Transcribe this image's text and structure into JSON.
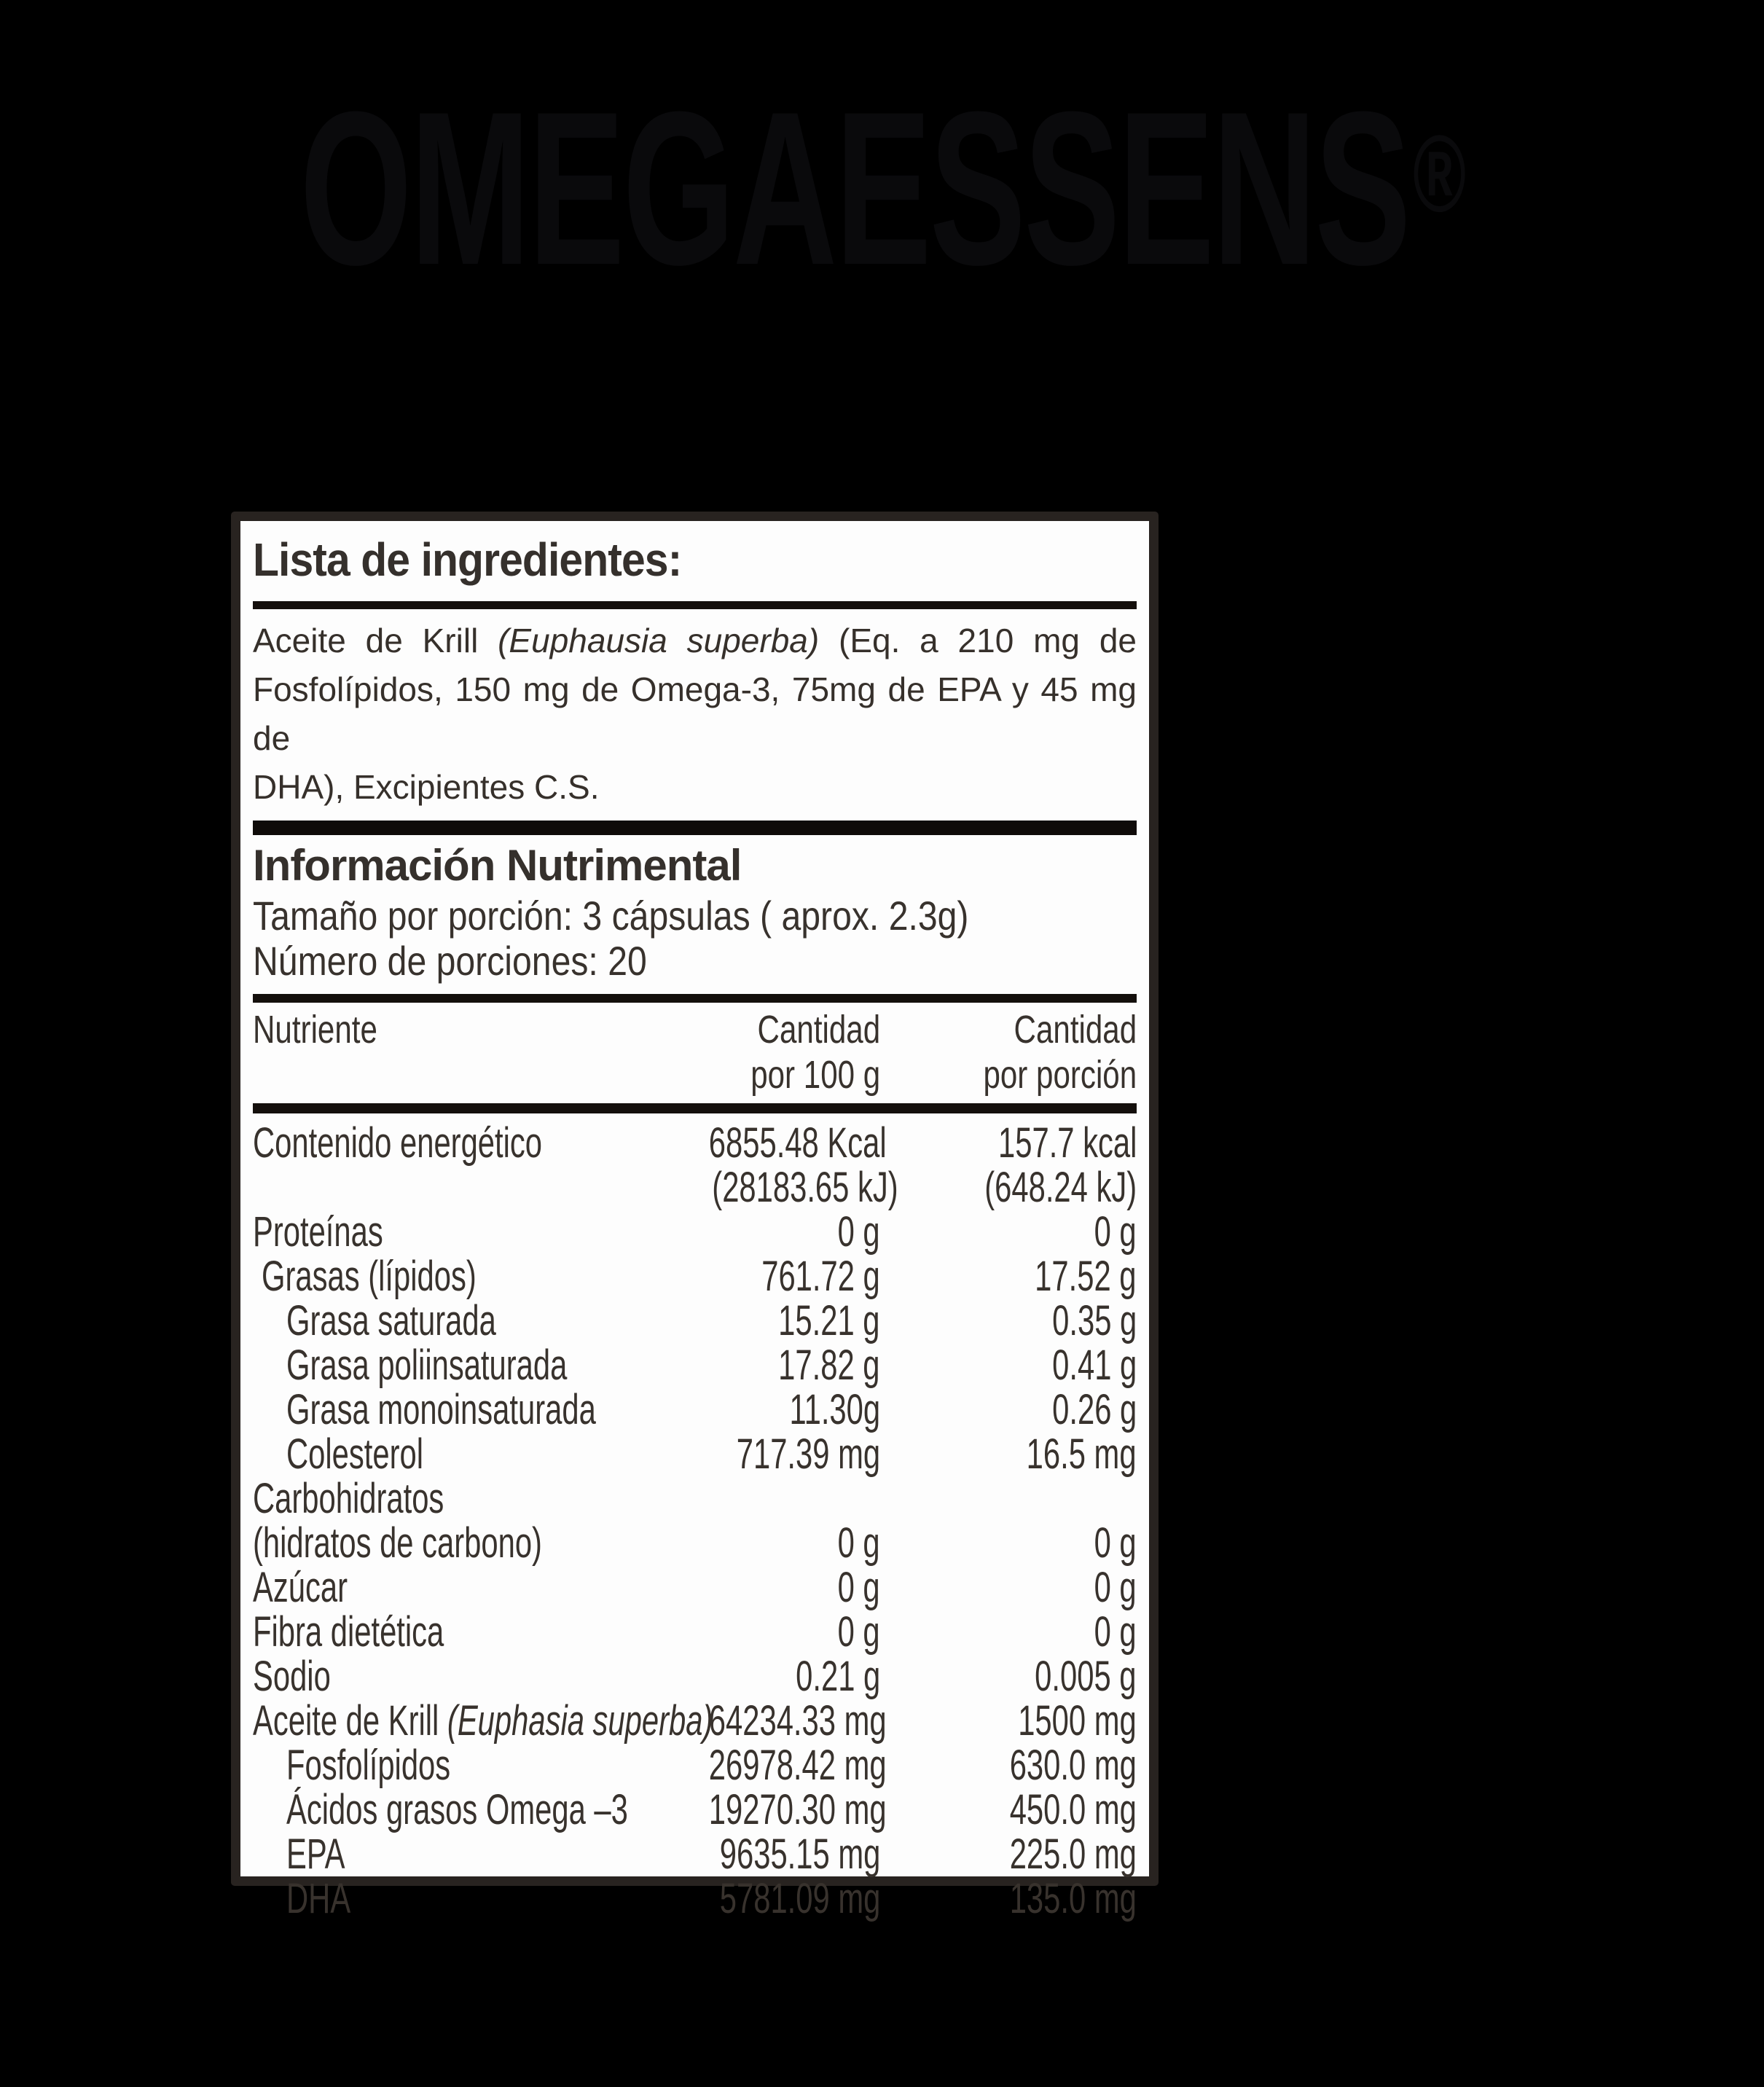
{
  "page": {
    "background": "#000000"
  },
  "brand": {
    "title": "OMEGAESSENS",
    "registered_mark": "®",
    "color": "#0a0a0c"
  },
  "panel": {
    "background": "#fdfdfd",
    "border_color": "#282320",
    "text_color": "#38322d",
    "rule_color": "#140f0c",
    "ingredients": {
      "heading": "Lista de ingredientes:",
      "lines": [
        {
          "justify": true,
          "segments": [
            {
              "t": "Aceite de Krill ",
              "i": false
            },
            {
              "t": "(Euphausia superba)",
              "i": true
            },
            {
              "t": " (Eq. a 210 mg de",
              "i": false
            }
          ]
        },
        {
          "justify": true,
          "segments": [
            {
              "t": "Fosfolípidos, 150 mg de Omega-3, 75mg de EPA y 45 mg de",
              "i": false
            }
          ]
        },
        {
          "justify": false,
          "segments": [
            {
              "t": "DHA), Excipientes C.S.",
              "i": false
            }
          ]
        }
      ]
    },
    "nutrition": {
      "heading": "Información Nutrimental",
      "serving_size": "Tamaño por porción: 3 cápsulas ( aprox. 2.3g)",
      "servings_count": "Número de porciones: 20",
      "header": {
        "nutrient": "Nutriente",
        "per100_l1": "Cantidad",
        "per100_l2": "por 100 g",
        "portion_l1": "Cantidad",
        "portion_l2": "por porción"
      },
      "rows": [
        {
          "label": "Contenido energético",
          "indent": 0,
          "per100": "6855.48 Kcal",
          "portion": "157.7 kcal"
        },
        {
          "label": "",
          "indent": 0,
          "per100": "(28183.65 kJ)",
          "portion": "(648.24 kJ)"
        },
        {
          "label": "Proteínas",
          "indent": 0,
          "per100": "0 g",
          "portion": "0 g"
        },
        {
          "label": "Grasas (lípidos)",
          "indent": 1,
          "per100": "761.72 g",
          "portion": "17.52 g"
        },
        {
          "label": "Grasa saturada",
          "indent": 2,
          "per100": "15.21 g",
          "portion": "0.35 g"
        },
        {
          "label": "Grasa poliinsaturada",
          "indent": 2,
          "per100": "17.82 g",
          "portion": "0.41 g"
        },
        {
          "label": "Grasa monoinsaturada",
          "indent": 2,
          "per100": "11.30g",
          "portion": "0.26 g"
        },
        {
          "label": "Colesterol",
          "indent": 2,
          "per100": "717.39 mg",
          "portion": "16.5 mg"
        },
        {
          "label": "Carbohidratos",
          "indent": 0,
          "per100": "",
          "portion": ""
        },
        {
          "label": "(hidratos de carbono)",
          "indent": 0,
          "per100": "0 g",
          "portion": "0 g"
        },
        {
          "label": "Azúcar",
          "indent": 0,
          "per100": "0 g",
          "portion": "0 g"
        },
        {
          "label": "Fibra dietética",
          "indent": 0,
          "per100": "0 g",
          "portion": "0 g"
        },
        {
          "label": "Sodio",
          "indent": 0,
          "per100": "0.21 g",
          "portion": "0.005 g"
        },
        {
          "label": "Aceite de Krill ",
          "label_italic": "(Euphasia superba)",
          "indent": 0,
          "per100": "64234.33 mg",
          "portion": "1500 mg"
        },
        {
          "label": "Fosfolípidos",
          "indent": 2,
          "per100": "26978.42 mg",
          "portion": "630.0 mg"
        },
        {
          "label": "Ácidos grasos Omega –3",
          "indent": 2,
          "per100": "19270.30 mg",
          "portion": "450.0 mg"
        },
        {
          "label": "EPA",
          "indent": 2,
          "per100": "9635.15 mg",
          "portion": "225.0 mg"
        },
        {
          "label": "DHA",
          "indent": 2,
          "per100": "5781.09 mg",
          "portion": "135.0 mg"
        }
      ]
    }
  }
}
